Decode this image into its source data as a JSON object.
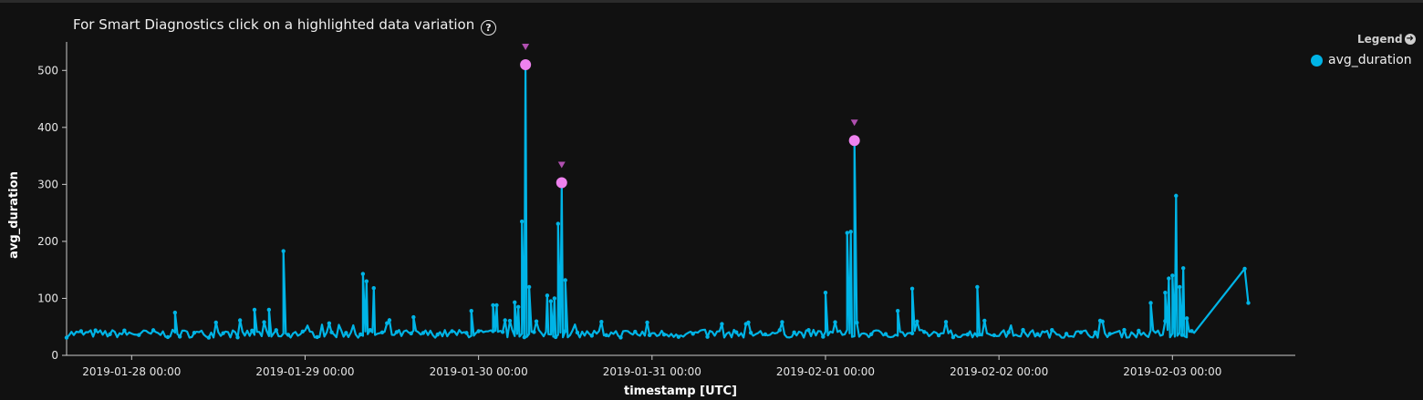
{
  "header": {
    "hint_text": "For Smart Diagnostics click on a highlighted data variation",
    "help_icon": "question-circle-icon",
    "help_glyph": "?"
  },
  "legend": {
    "title": "Legend",
    "arrow_icon": "arrow-right-circle-icon",
    "items": [
      {
        "label": "avg_duration",
        "color": "#00b4e6"
      }
    ]
  },
  "colors": {
    "background": "#111111",
    "series": "#00b4e6",
    "anomaly": "#ee82ee",
    "anomaly_marker": "#b04fb0",
    "axis": "#cccccc"
  },
  "chart_data": {
    "type": "line",
    "xlabel": "timestamp [UTC]",
    "ylabel": "avg_duration",
    "xlim": [
      "2019-01-27 15:00",
      "2019-02-03 17:00"
    ],
    "ylim": [
      0,
      550
    ],
    "yticks": [
      0,
      100,
      200,
      300,
      400,
      500
    ],
    "xticks": [
      "2019-01-28 00:00",
      "2019-01-29 00:00",
      "2019-01-30 00:00",
      "2019-01-31 00:00",
      "2019-02-01 00:00",
      "2019-02-02 00:00",
      "2019-02-03 00:00"
    ],
    "grid": false,
    "legend": "top-right",
    "series": [
      {
        "name": "avg_duration",
        "baseline_range": [
          30,
          55
        ],
        "spikes": [
          {
            "x": "2019-01-28 06:00",
            "y": 75
          },
          {
            "x": "2019-01-28 17:00",
            "y": 80
          },
          {
            "x": "2019-01-28 19:00",
            "y": 80
          },
          {
            "x": "2019-01-28 21:00",
            "y": 183
          },
          {
            "x": "2019-01-29 08:00",
            "y": 143
          },
          {
            "x": "2019-01-29 08:30",
            "y": 130
          },
          {
            "x": "2019-01-29 09:30",
            "y": 118
          },
          {
            "x": "2019-01-29 15:00",
            "y": 67
          },
          {
            "x": "2019-01-29 23:00",
            "y": 78
          },
          {
            "x": "2019-01-30 02:00",
            "y": 88
          },
          {
            "x": "2019-01-30 02:30",
            "y": 88
          },
          {
            "x": "2019-01-30 05:00",
            "y": 93
          },
          {
            "x": "2019-01-30 05:30",
            "y": 85
          },
          {
            "x": "2019-01-30 06:00",
            "y": 235
          },
          {
            "x": "2019-01-30 06:30",
            "y": 510
          },
          {
            "x": "2019-01-30 07:00",
            "y": 120
          },
          {
            "x": "2019-01-30 09:30",
            "y": 105
          },
          {
            "x": "2019-01-30 10:00",
            "y": 95
          },
          {
            "x": "2019-01-30 10:30",
            "y": 100
          },
          {
            "x": "2019-01-30 11:00",
            "y": 231
          },
          {
            "x": "2019-01-30 11:30",
            "y": 303
          },
          {
            "x": "2019-01-30 12:00",
            "y": 132
          },
          {
            "x": "2019-02-01 00:00",
            "y": 110
          },
          {
            "x": "2019-02-01 03:00",
            "y": 215
          },
          {
            "x": "2019-02-01 03:30",
            "y": 217
          },
          {
            "x": "2019-02-01 04:00",
            "y": 377
          },
          {
            "x": "2019-02-01 10:00",
            "y": 78
          },
          {
            "x": "2019-02-01 12:00",
            "y": 117
          },
          {
            "x": "2019-02-01 21:00",
            "y": 120
          },
          {
            "x": "2019-02-02 21:00",
            "y": 92
          },
          {
            "x": "2019-02-02 23:00",
            "y": 110
          },
          {
            "x": "2019-02-02 23:30",
            "y": 135
          },
          {
            "x": "2019-02-03 00:00",
            "y": 140
          },
          {
            "x": "2019-02-03 00:30",
            "y": 280
          },
          {
            "x": "2019-02-03 01:00",
            "y": 120
          },
          {
            "x": "2019-02-03 01:30",
            "y": 153
          },
          {
            "x": "2019-02-03 02:00",
            "y": 65
          },
          {
            "x": "2019-02-03 10:00",
            "y": 152
          },
          {
            "x": "2019-02-03 10:30",
            "y": 92
          }
        ]
      }
    ],
    "anomalies": [
      {
        "x": "2019-01-30 06:30",
        "y": 510
      },
      {
        "x": "2019-01-30 11:30",
        "y": 303
      },
      {
        "x": "2019-02-01 04:00",
        "y": 377
      }
    ]
  }
}
